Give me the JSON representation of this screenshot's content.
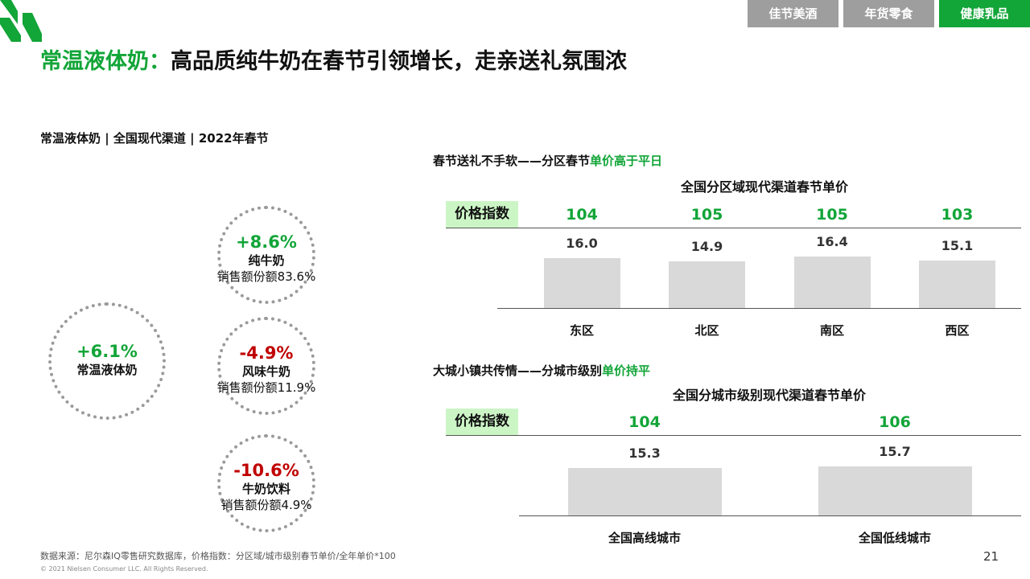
{
  "tabs": [
    {
      "label": "佳节美酒",
      "active": false
    },
    {
      "label": "年货零食",
      "active": false
    },
    {
      "label": "健康乳品",
      "active": true
    }
  ],
  "title": {
    "highlight": "常温液体奶：",
    "rest": "高品质纯牛奶在春节引领增长，走亲送礼氛围浓"
  },
  "subtitle": "常温液体奶 | 全国现代渠道 | 2022年春节",
  "circles": {
    "main": {
      "pct": "+6.1%",
      "name": "常温液体奶",
      "trend": "up"
    },
    "subs": [
      {
        "pct": "+8.6%",
        "name": "纯牛奶",
        "share": "销售额份额83.6%",
        "trend": "up"
      },
      {
        "pct": "-4.9%",
        "name": "风味牛奶",
        "share": "销售额份额11.9%",
        "trend": "down"
      },
      {
        "pct": "-10.6%",
        "name": "牛奶饮料",
        "share": "销售额份额4.9%",
        "trend": "down"
      }
    ]
  },
  "colors": {
    "accent": "#12a538",
    "negative": "#c00000",
    "bar": "#d9d9d9",
    "index_bg": "#ccf5c6"
  },
  "section1": {
    "title_plain": "春节送礼不手软——分区春节",
    "title_highlight": "单价高于平日"
  },
  "section2": {
    "title_plain": "大城小镇共传情——分城市级别",
    "title_highlight": "单价持平"
  },
  "index_label": "价格指数",
  "chart_data": [
    {
      "type": "bar",
      "title": "全国分区域现代渠道春节单价",
      "categories": [
        "东区",
        "北区",
        "南区",
        "西区"
      ],
      "values": [
        16.0,
        14.9,
        16.4,
        15.1
      ],
      "value_labels": [
        "16.0",
        "14.9",
        "16.4",
        "15.1"
      ],
      "price_index": [
        "104",
        "105",
        "105",
        "103"
      ],
      "ylim": [
        0,
        16.4
      ]
    },
    {
      "type": "bar",
      "title": "全国分城市级别现代渠道春节单价",
      "categories": [
        "全国高线城市",
        "全国低线城市"
      ],
      "values": [
        15.3,
        15.7
      ],
      "value_labels": [
        "15.3",
        "15.7"
      ],
      "price_index": [
        "104",
        "106"
      ],
      "ylim": [
        0,
        15.7
      ]
    }
  ],
  "footer": {
    "source": "数据来源：尼尔森IQ零售研究数据库，价格指数：分区域/城市级别春节单价/全年单价*100",
    "copyright": "© 2021 Nielsen Consumer LLC. All Rights Reserved.",
    "page": "21"
  }
}
